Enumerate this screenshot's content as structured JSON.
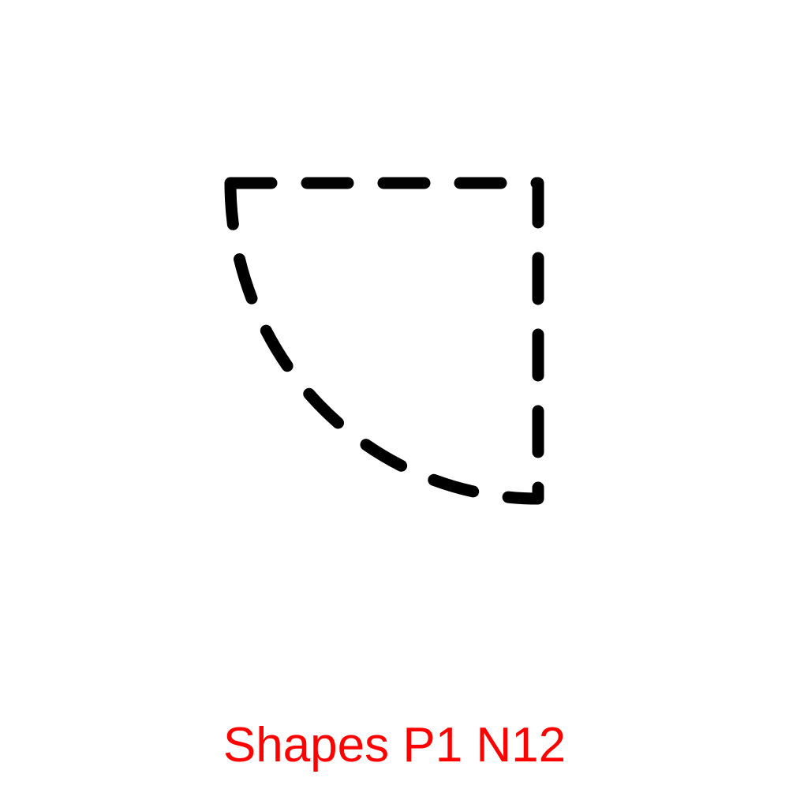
{
  "caption": {
    "text": "Shapes P1 N12",
    "color": "#ff0000"
  },
  "shape": {
    "name": "quarter-circle",
    "style": "dashed-outline",
    "stroke_color": "#000000"
  }
}
